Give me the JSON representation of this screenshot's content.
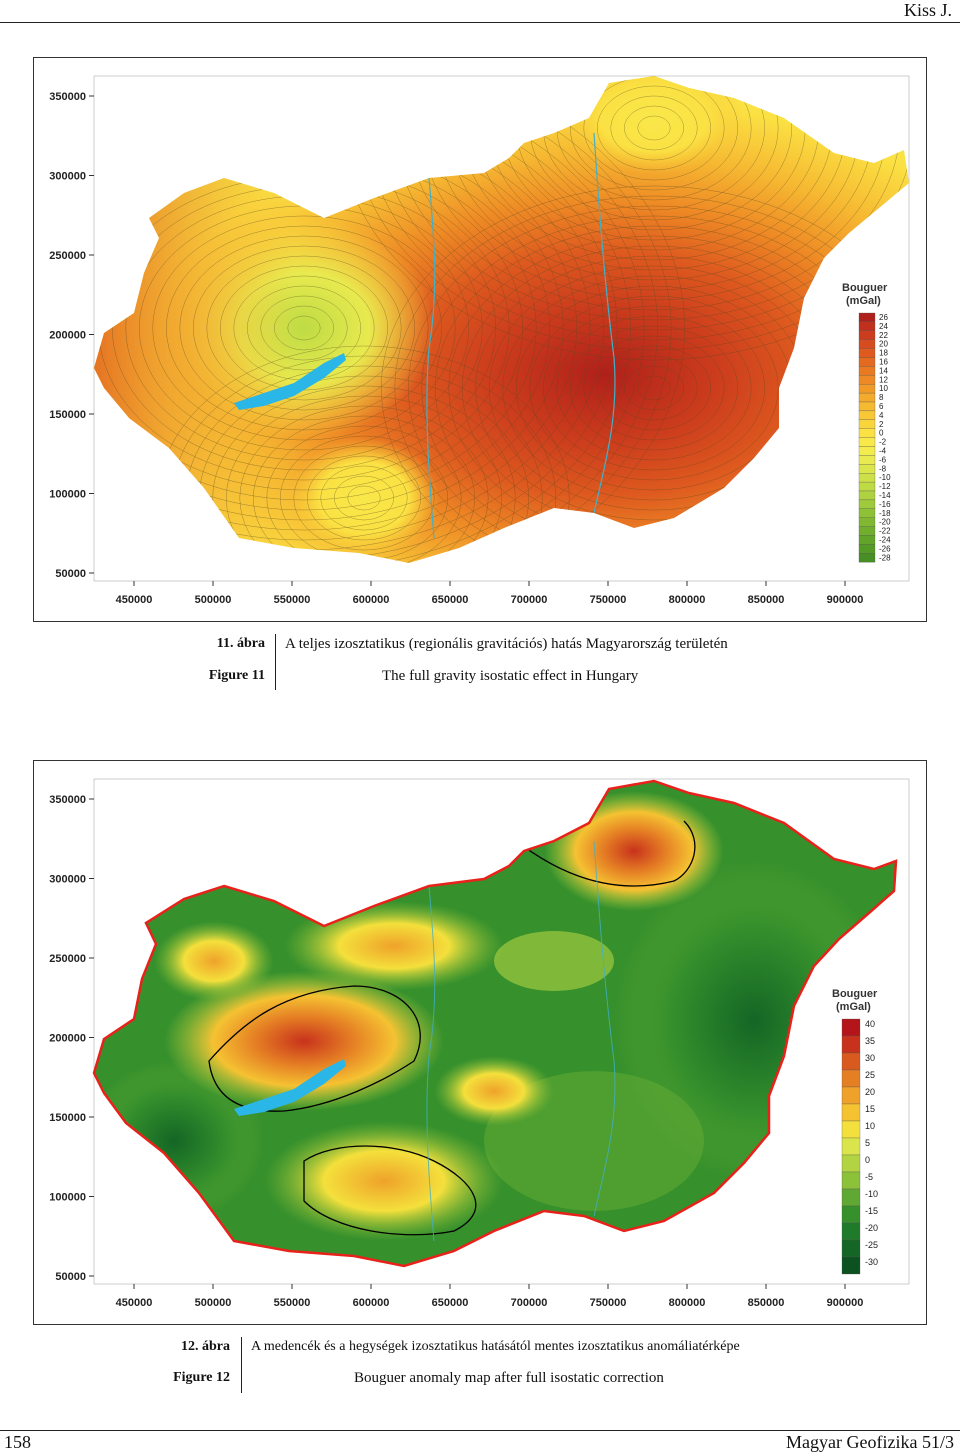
{
  "header": {
    "running_head": "Kiss J."
  },
  "figure11": {
    "x_ticks": [
      "450000",
      "500000",
      "550000",
      "600000",
      "650000",
      "700000",
      "750000",
      "800000",
      "850000",
      "900000"
    ],
    "y_ticks": [
      "350000",
      "300000",
      "250000",
      "200000",
      "150000",
      "100000",
      "50000"
    ],
    "legend": {
      "title_line1": "Bouguer",
      "title_line2": "(mGal)",
      "levels": [
        "26",
        "24",
        "22",
        "20",
        "18",
        "16",
        "14",
        "12",
        "10",
        "8",
        "6",
        "4",
        "2",
        "0",
        "-2",
        "-4",
        "-6",
        "-8",
        "-10",
        "-12",
        "-14",
        "-16",
        "-18",
        "-20",
        "-22",
        "-24",
        "-26",
        "-28"
      ],
      "colors": [
        "#b0201a",
        "#c1301c",
        "#cc3d1d",
        "#d64b1f",
        "#de5a1f",
        "#e46a20",
        "#ea7a22",
        "#ee8a25",
        "#f19a28",
        "#f4aa2c",
        "#f6b932",
        "#f8c837",
        "#f9d53c",
        "#fbe143",
        "#f9e84a",
        "#f3ec4f",
        "#e8ea4f",
        "#dbe54c",
        "#cde048",
        "#bedb44",
        "#afd340",
        "#9fca3b",
        "#8fc136",
        "#80b832",
        "#71ae2e",
        "#62a42a",
        "#549a27",
        "#478f24"
      ]
    },
    "caption": {
      "label_hu": "11. ábra",
      "text_hu": "A teljes izosztatikus (regionális gravitációs) hatás Magyarország területén",
      "label_en": "Figure 11",
      "text_en": "The full gravity isostatic effect in Hungary"
    }
  },
  "figure12": {
    "x_ticks": [
      "450000",
      "500000",
      "550000",
      "600000",
      "650000",
      "700000",
      "750000",
      "800000",
      "850000",
      "900000"
    ],
    "y_ticks": [
      "350000",
      "300000",
      "250000",
      "200000",
      "150000",
      "100000",
      "50000"
    ],
    "legend": {
      "title_line1": "Bouguer",
      "title_line2": "(mGal)",
      "levels": [
        "40",
        "35",
        "30",
        "25",
        "20",
        "15",
        "10",
        "5",
        "0",
        "-5",
        "-10",
        "-15",
        "-20",
        "-25",
        "-30"
      ],
      "colors": [
        "#b3151a",
        "#c8321c",
        "#d95a1f",
        "#e57f24",
        "#efa22a",
        "#f5c232",
        "#f4e03c",
        "#d9e54a",
        "#b3d442",
        "#8cc13a",
        "#5fa833",
        "#36902c",
        "#1f7a2a",
        "#136625",
        "#0c5220"
      ]
    },
    "caption": {
      "label_hu": "12. ábra",
      "text_hu": "A medencék és a hegységek izosztatikus hatásától mentes izosztatikus anomáliatérképe",
      "label_en": "Figure 12",
      "text_en": "Bouguer anomaly map after full isostatic correction"
    }
  },
  "footer": {
    "page_number": "158",
    "journal": "Magyar Geofizika 51/3"
  }
}
